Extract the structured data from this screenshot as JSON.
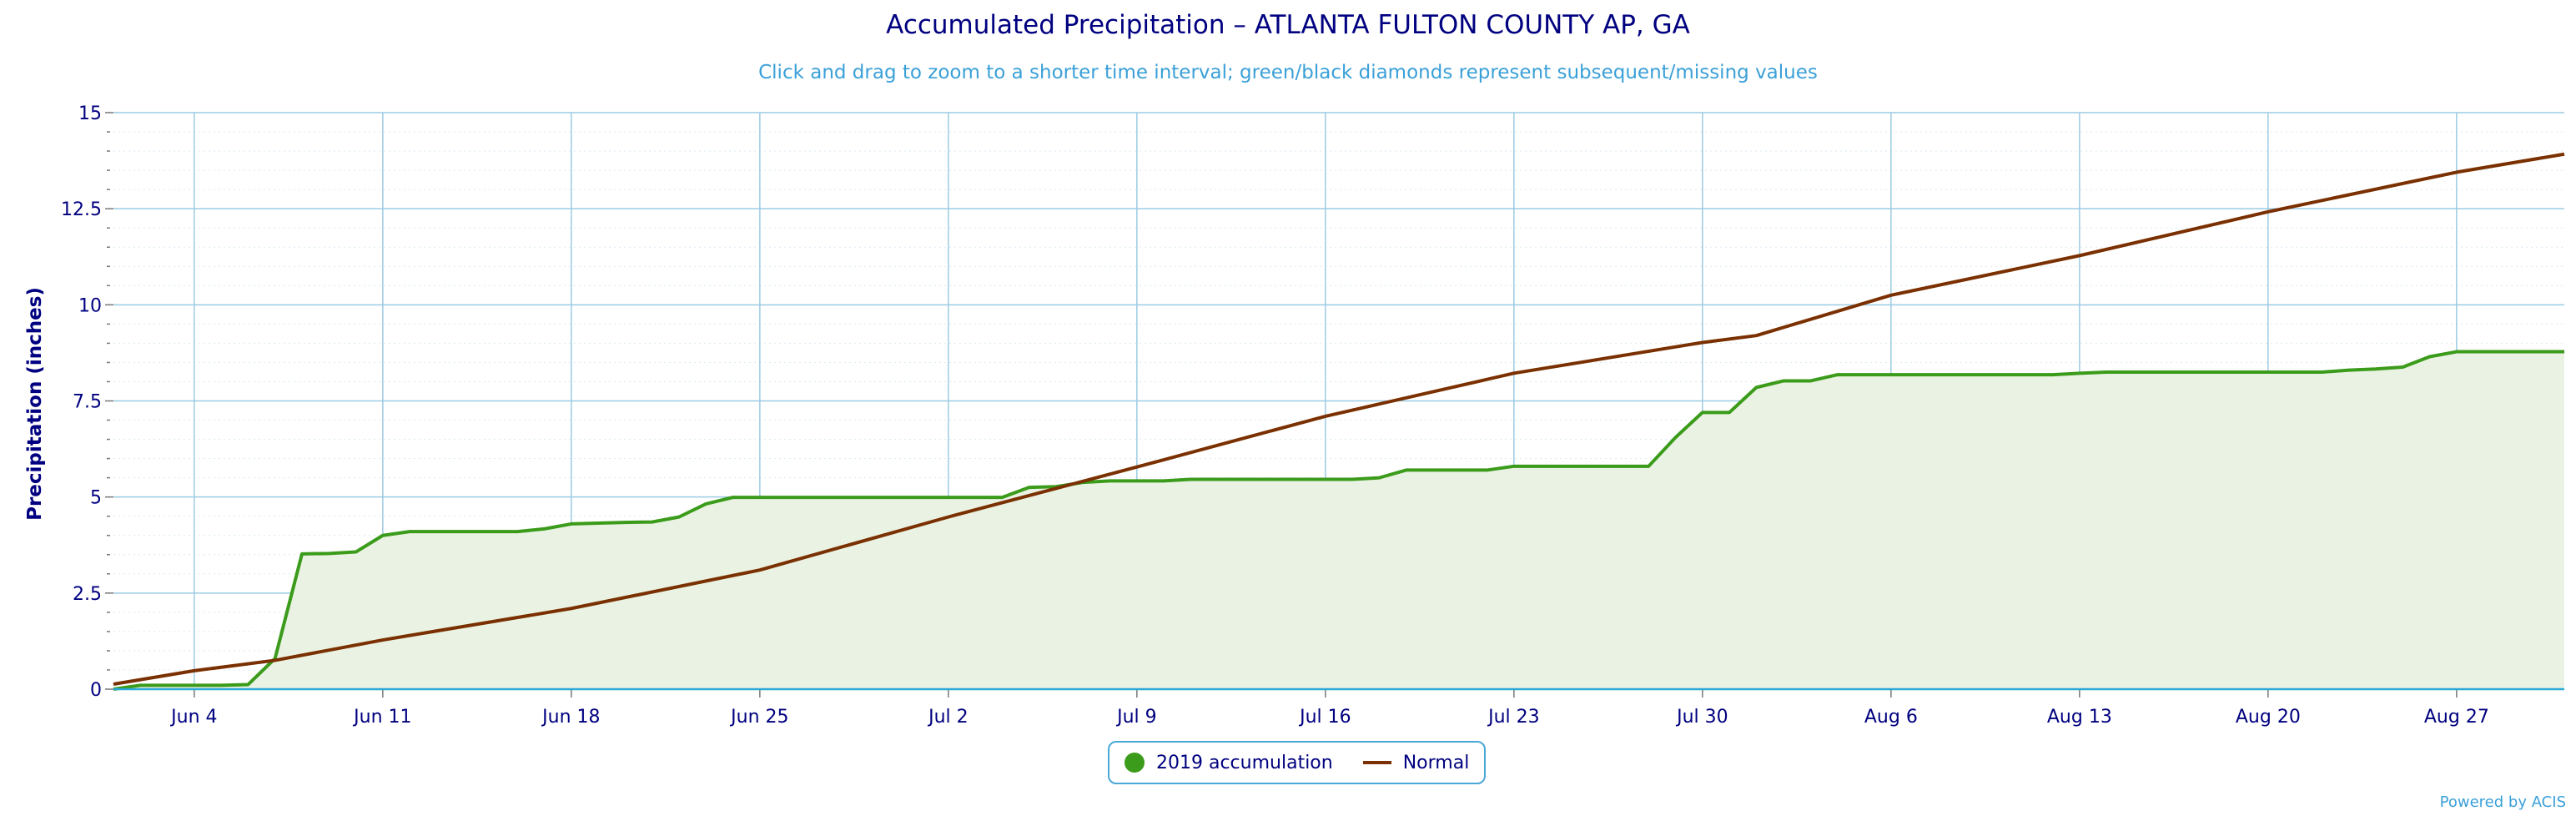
{
  "chart_data": {
    "type": "area",
    "title": "Accumulated Precipitation – ATLANTA FULTON COUNTY AP, GA",
    "subtitle": "Click and drag to zoom to a shorter time interval; green/black diamonds represent subsequent/missing values",
    "ylabel": "Precipitation (inches)",
    "ylim": [
      0,
      15
    ],
    "y_ticks": [
      "0",
      "2.5",
      "5",
      "7.5",
      "10",
      "12.5",
      "15"
    ],
    "x_ticks": [
      "Jun 4",
      "Jun 11",
      "Jun 18",
      "Jun 25",
      "Jul 2",
      "Jul 9",
      "Jul 16",
      "Jul 23",
      "Jul 30",
      "Aug 6",
      "Aug 13",
      "Aug 20",
      "Aug 27"
    ],
    "x_range": [
      "2019-06-01",
      "2019-08-31"
    ],
    "grid": true,
    "legend_position": "bottom-center",
    "series": [
      {
        "name": "2019 accumulation",
        "color": "#3b9b1a",
        "fill": "#eaf3e3",
        "points": [
          [
            "2019-06-01",
            0.0
          ],
          [
            "2019-06-02",
            0.1
          ],
          [
            "2019-06-03",
            0.1
          ],
          [
            "2019-06-04",
            0.1
          ],
          [
            "2019-06-05",
            0.1
          ],
          [
            "2019-06-06",
            0.12
          ],
          [
            "2019-06-07",
            0.8
          ],
          [
            "2019-06-08",
            3.52
          ],
          [
            "2019-06-09",
            3.53
          ],
          [
            "2019-06-10",
            3.57
          ],
          [
            "2019-06-11",
            4.0
          ],
          [
            "2019-06-12",
            4.1
          ],
          [
            "2019-06-13",
            4.1
          ],
          [
            "2019-06-14",
            4.1
          ],
          [
            "2019-06-15",
            4.1
          ],
          [
            "2019-06-16",
            4.1
          ],
          [
            "2019-06-17",
            4.17
          ],
          [
            "2019-06-18",
            4.3
          ],
          [
            "2019-06-19",
            4.32
          ],
          [
            "2019-06-20",
            4.34
          ],
          [
            "2019-06-21",
            4.35
          ],
          [
            "2019-06-22",
            4.48
          ],
          [
            "2019-06-23",
            4.82
          ],
          [
            "2019-06-24",
            4.99
          ],
          [
            "2019-06-25",
            4.99
          ],
          [
            "2019-06-26",
            4.99
          ],
          [
            "2019-06-27",
            4.99
          ],
          [
            "2019-06-28",
            4.99
          ],
          [
            "2019-06-29",
            4.99
          ],
          [
            "2019-06-30",
            4.99
          ],
          [
            "2019-07-01",
            4.99
          ],
          [
            "2019-07-02",
            4.99
          ],
          [
            "2019-07-03",
            4.99
          ],
          [
            "2019-07-04",
            4.99
          ],
          [
            "2019-07-05",
            5.25
          ],
          [
            "2019-07-06",
            5.27
          ],
          [
            "2019-07-07",
            5.38
          ],
          [
            "2019-07-08",
            5.42
          ],
          [
            "2019-07-09",
            5.42
          ],
          [
            "2019-07-10",
            5.42
          ],
          [
            "2019-07-11",
            5.46
          ],
          [
            "2019-07-12",
            5.46
          ],
          [
            "2019-07-13",
            5.46
          ],
          [
            "2019-07-14",
            5.46
          ],
          [
            "2019-07-15",
            5.46
          ],
          [
            "2019-07-16",
            5.46
          ],
          [
            "2019-07-17",
            5.46
          ],
          [
            "2019-07-18",
            5.5
          ],
          [
            "2019-07-19",
            5.7
          ],
          [
            "2019-07-20",
            5.7
          ],
          [
            "2019-07-21",
            5.7
          ],
          [
            "2019-07-22",
            5.7
          ],
          [
            "2019-07-23",
            5.8
          ],
          [
            "2019-07-24",
            5.8
          ],
          [
            "2019-07-25",
            5.8
          ],
          [
            "2019-07-26",
            5.8
          ],
          [
            "2019-07-27",
            5.8
          ],
          [
            "2019-07-28",
            5.8
          ],
          [
            "2019-07-29",
            6.55
          ],
          [
            "2019-07-30",
            7.2
          ],
          [
            "2019-07-31",
            7.2
          ],
          [
            "2019-08-01",
            7.85
          ],
          [
            "2019-08-02",
            8.02
          ],
          [
            "2019-08-03",
            8.02
          ],
          [
            "2019-08-04",
            8.18
          ],
          [
            "2019-08-05",
            8.18
          ],
          [
            "2019-08-06",
            8.18
          ],
          [
            "2019-08-07",
            8.18
          ],
          [
            "2019-08-08",
            8.18
          ],
          [
            "2019-08-09",
            8.18
          ],
          [
            "2019-08-10",
            8.18
          ],
          [
            "2019-08-11",
            8.18
          ],
          [
            "2019-08-12",
            8.18
          ],
          [
            "2019-08-13",
            8.22
          ],
          [
            "2019-08-14",
            8.25
          ],
          [
            "2019-08-15",
            8.25
          ],
          [
            "2019-08-16",
            8.25
          ],
          [
            "2019-08-17",
            8.25
          ],
          [
            "2019-08-18",
            8.25
          ],
          [
            "2019-08-19",
            8.25
          ],
          [
            "2019-08-20",
            8.25
          ],
          [
            "2019-08-21",
            8.25
          ],
          [
            "2019-08-22",
            8.25
          ],
          [
            "2019-08-23",
            8.3
          ],
          [
            "2019-08-24",
            8.33
          ],
          [
            "2019-08-25",
            8.38
          ],
          [
            "2019-08-26",
            8.65
          ],
          [
            "2019-08-27",
            8.78
          ],
          [
            "2019-08-28",
            8.78
          ],
          [
            "2019-08-29",
            8.78
          ],
          [
            "2019-08-30",
            8.78
          ],
          [
            "2019-08-31",
            8.78
          ]
        ]
      },
      {
        "name": "Normal",
        "color": "#7a3000",
        "points": [
          [
            "2019-06-01",
            0.13
          ],
          [
            "2019-06-04",
            0.48
          ],
          [
            "2019-06-07",
            0.75
          ],
          [
            "2019-06-11",
            1.28
          ],
          [
            "2019-06-18",
            2.1
          ],
          [
            "2019-06-25",
            3.1
          ],
          [
            "2019-07-02",
            4.48
          ],
          [
            "2019-07-09",
            5.78
          ],
          [
            "2019-07-16",
            7.1
          ],
          [
            "2019-07-23",
            8.22
          ],
          [
            "2019-07-30",
            9.02
          ],
          [
            "2019-08-01",
            9.2
          ],
          [
            "2019-08-06",
            10.25
          ],
          [
            "2019-08-13",
            11.28
          ],
          [
            "2019-08-20",
            12.42
          ],
          [
            "2019-08-27",
            13.45
          ],
          [
            "2019-08-31",
            13.92
          ]
        ]
      }
    ]
  },
  "credit": "Powered by ACIS"
}
